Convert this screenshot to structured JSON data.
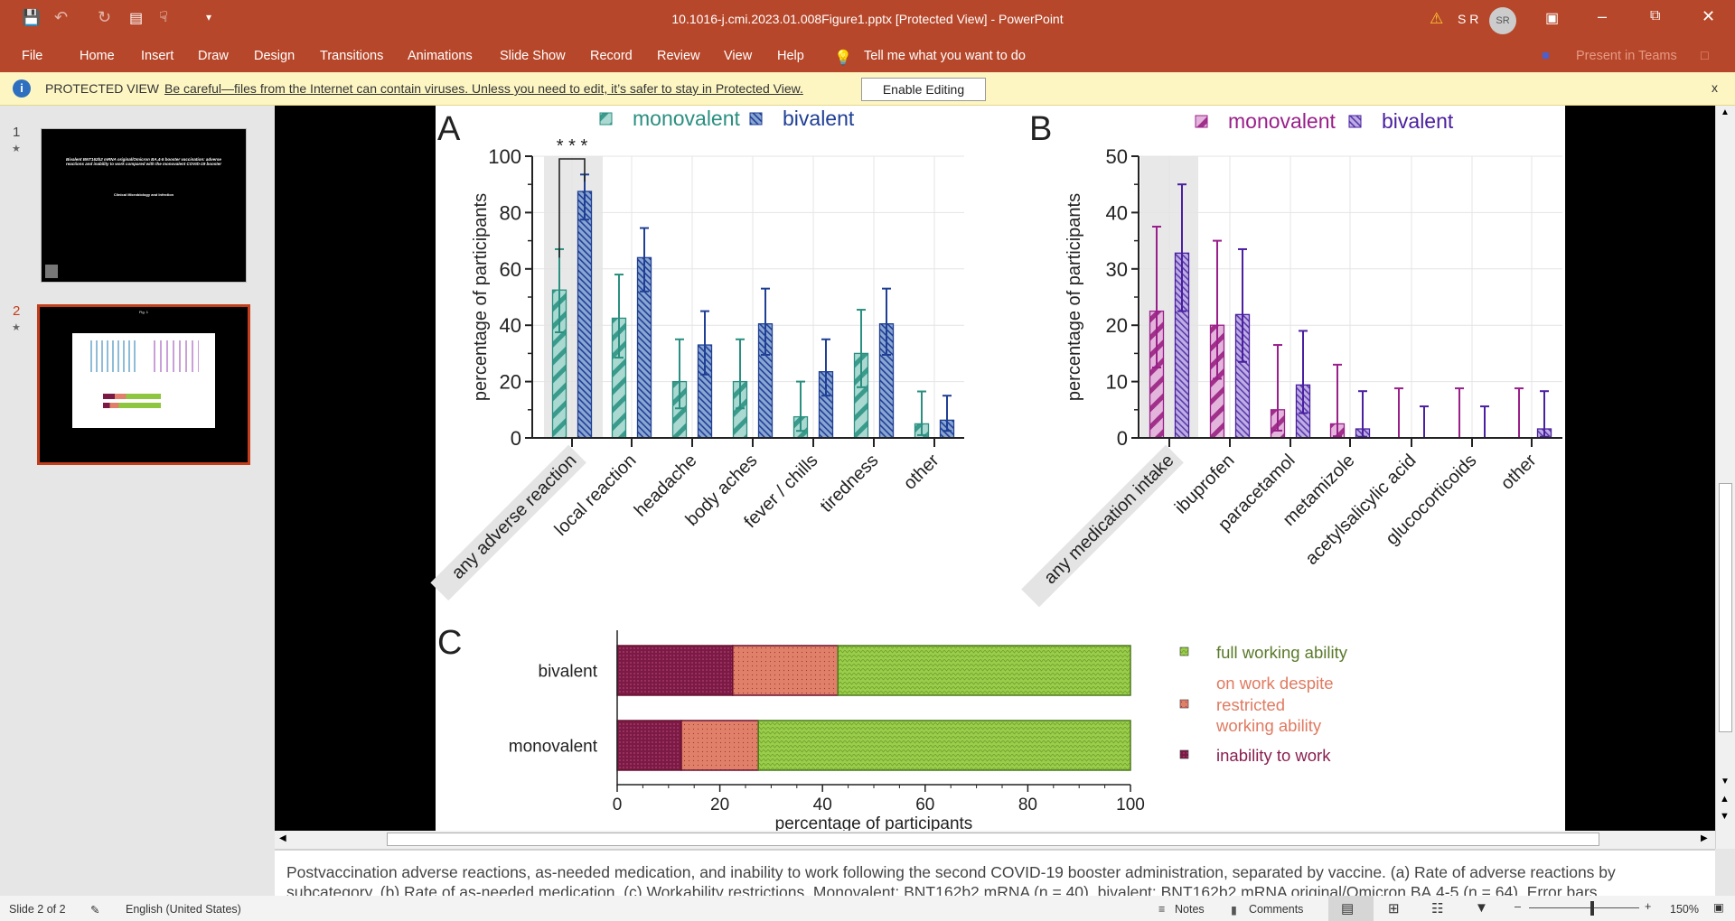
{
  "window": {
    "title": "10.1016-j.cmi.2023.01.008Figure1.pptx [Protected View]  -  PowerPoint",
    "user_initials": "S R",
    "avatar": "SR"
  },
  "ribbon": {
    "tabs": [
      "File",
      "Home",
      "Insert",
      "Draw",
      "Design",
      "Transitions",
      "Animations",
      "Slide Show",
      "Record",
      "Review",
      "View",
      "Help"
    ],
    "tell_me": "Tell me what you want to do",
    "present_teams": "Present in Teams"
  },
  "protected": {
    "label": "PROTECTED VIEW",
    "message": "Be careful—files from the Internet can contain viruses. Unless you need to edit, it’s safer to stay in Protected View.",
    "button": "Enable Editing",
    "close": "x"
  },
  "thumbnails": [
    {
      "num": "1",
      "star": "★",
      "title": "Bivalent BNT162b2 mRNA original/Omicron BA.4-5 booster vaccination: adverse reactions and inability to work compared with the monovalent COVID-19 booster",
      "journal": "Clinical Microbiology and Infection"
    },
    {
      "num": "2",
      "star": "★",
      "title": "Fig. 1"
    }
  ],
  "notes": "Postvaccination adverse reactions, as-needed medication, and inability to work following the second COVID-19 booster administration, separated by vaccine. (a) Rate of adverse reactions by subcategory. (b) Rate of as-needed medication. (c) Workability restrictions. Monovalent: BNT162b2 mRNA (n = 40), bivalent: BNT162b2 mRNA original/Omicron BA.4-5 (n = 64). Error bars",
  "status": {
    "slide": "Slide 2 of 2",
    "language": "English (United States)",
    "notes": "Notes",
    "comments": "Comments",
    "zoom": "150%"
  },
  "chart_data": [
    {
      "type": "bar",
      "panel": "A",
      "ylabel": "percentage of participants",
      "ylim": [
        0,
        100
      ],
      "yticks": [
        "0",
        "20",
        "40",
        "60",
        "80",
        "100"
      ],
      "categories": [
        "any adverse reaction",
        "local reaction",
        "headache",
        "body aches",
        "fever / chills",
        "tiredness",
        "other"
      ],
      "significance": "* * *",
      "series": [
        {
          "name": "monovalent",
          "color": "#2a8f80",
          "values": [
            52.5,
            42.5,
            20,
            20,
            7.5,
            30,
            5
          ],
          "err_low": [
            37.5,
            28.5,
            10.5,
            10.5,
            2.5,
            18,
            1
          ],
          "err_high": [
            67,
            58,
            35,
            35,
            20,
            45.5,
            16.5
          ]
        },
        {
          "name": "bivalent",
          "color": "#1f3f95",
          "values": [
            87.5,
            64,
            33,
            40.5,
            23.5,
            40.5,
            6.3
          ],
          "err_low": [
            77.5,
            52,
            22.5,
            29.5,
            15,
            29.5,
            2.5
          ],
          "err_high": [
            93.5,
            74.5,
            45,
            53,
            35,
            53,
            15
          ]
        }
      ]
    },
    {
      "type": "bar",
      "panel": "B",
      "ylabel": "percentage of participants",
      "ylim": [
        0,
        50
      ],
      "yticks": [
        "0",
        "10",
        "20",
        "30",
        "40",
        "50"
      ],
      "categories": [
        "any medication intake",
        "ibuprofen",
        "paracetamol",
        "metamizole",
        "acetylsalicylic acid",
        "glucocorticoids",
        "other"
      ],
      "series": [
        {
          "name": "monovalent",
          "color": "#9a1f8a",
          "values": [
            22.5,
            20,
            5,
            2.5,
            0,
            0,
            0
          ],
          "err_low": [
            12.5,
            10.5,
            1.3,
            0.3,
            0,
            0,
            0
          ],
          "err_high": [
            37.5,
            35,
            16.5,
            13,
            8.8,
            8.8,
            8.8
          ]
        },
        {
          "name": "bivalent",
          "color": "#4a1fa0",
          "values": [
            32.8,
            21.9,
            9.4,
            1.6,
            0,
            0,
            1.6
          ],
          "err_low": [
            22.5,
            13.5,
            4.4,
            0.2,
            0,
            0,
            0.2
          ],
          "err_high": [
            45,
            33.5,
            19,
            8.3,
            5.6,
            5.6,
            8.3
          ]
        }
      ]
    },
    {
      "type": "bar",
      "panel": "C",
      "orientation": "horizontal",
      "stacked": true,
      "xlabel": "percentage of participants",
      "xlim": [
        0,
        100
      ],
      "xticks": [
        "0",
        "20",
        "40",
        "60",
        "80",
        "100"
      ],
      "categories": [
        "bivalent",
        "monovalent"
      ],
      "series": [
        {
          "name": "inability to work",
          "color": "#7a1a45",
          "values": [
            22.5,
            12.5
          ]
        },
        {
          "name": "on work despite restricted working ability",
          "label_lines": [
            "on work despite",
            "restricted",
            "working ability"
          ],
          "color": "#e0806a",
          "values": [
            20.5,
            15
          ]
        },
        {
          "name": "full working ability",
          "color": "#8fc63f",
          "values": [
            57,
            72.5
          ]
        }
      ]
    }
  ]
}
